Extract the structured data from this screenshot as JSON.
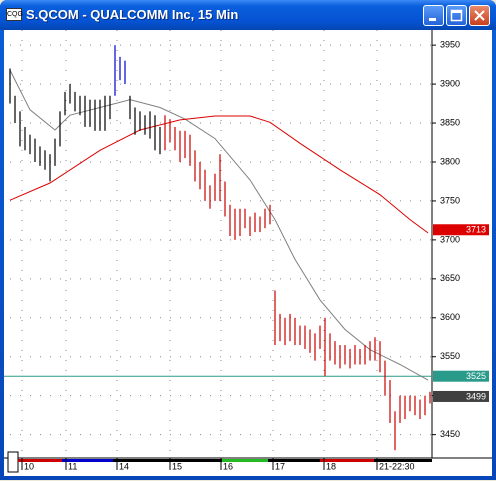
{
  "window": {
    "title": "S.QCOM - QUALCOMM Inc, 15 Min"
  },
  "chart_data": {
    "type": "ohlc",
    "xlim": [
      0,
      84
    ],
    "xticks": [
      {
        "value": 2.4,
        "label": "10"
      },
      {
        "value": 11.2,
        "label": "11"
      },
      {
        "value": 21.4,
        "label": "14"
      },
      {
        "value": 32,
        "label": "15"
      },
      {
        "value": 42.2,
        "label": "16"
      },
      {
        "value": 52.6,
        "label": "17"
      },
      {
        "value": 62.8,
        "label": "18"
      },
      {
        "value": 73.4,
        "label": "21-22:30"
      }
    ],
    "ylim": [
      3420,
      3972
    ],
    "yticks": [
      3450,
      3500,
      3550,
      3600,
      3650,
      3700,
      3750,
      3800,
      3850,
      3900,
      3950
    ],
    "grid": true,
    "high": [
      3920,
      3885,
      3865,
      3845,
      3835,
      3830,
      3820,
      3815,
      3810,
      3830,
      3865,
      3890,
      3900,
      3890,
      3885,
      3885,
      3880,
      3880,
      3880,
      3885,
      3885,
      3950,
      3935,
      3930,
      3885,
      3870,
      3865,
      3860,
      3865,
      3860,
      3845,
      3860,
      3855,
      3845,
      3840,
      3840,
      3835,
      3815,
      3800,
      3790,
      3770,
      3785,
      3810,
      3775,
      3745,
      3740,
      3740,
      3740,
      3730,
      3735,
      3730,
      3740,
      3745,
      3635,
      3605,
      3600,
      3605,
      3600,
      3590,
      3590,
      3585,
      3580,
      3590,
      3600,
      3580,
      3570,
      3565,
      3565,
      3560,
      3565,
      3560,
      3565,
      3570,
      3575,
      3570,
      3545,
      3520,
      3480,
      3500,
      3500,
      3500,
      3500,
      3495,
      3500,
      3505
    ],
    "low": [
      3875,
      3850,
      3820,
      3815,
      3810,
      3800,
      3795,
      3790,
      3775,
      3795,
      3820,
      3860,
      3875,
      3865,
      3860,
      3845,
      3845,
      3840,
      3840,
      3840,
      3855,
      3885,
      3905,
      3900,
      3855,
      3835,
      3840,
      3835,
      3830,
      3815,
      3810,
      3815,
      3825,
      3815,
      3800,
      3805,
      3795,
      3775,
      3765,
      3750,
      3740,
      3750,
      3750,
      3730,
      3705,
      3700,
      3705,
      3715,
      3705,
      3710,
      3710,
      3715,
      3720,
      3565,
      3570,
      3565,
      3570,
      3565,
      3565,
      3560,
      3555,
      3545,
      3560,
      3525,
      3545,
      3540,
      3535,
      3540,
      3535,
      3540,
      3540,
      3540,
      3545,
      3545,
      3530,
      3500,
      3465,
      3430,
      3465,
      3470,
      3480,
      3475,
      3470,
      3475,
      3490
    ],
    "colors": [
      "#000000",
      "#000000",
      "#000000",
      "#000000",
      "#000000",
      "#000000",
      "#000000",
      "#000000",
      "#000000",
      "#000000",
      "#000000",
      "#000000",
      "#000000",
      "#000000",
      "#000000",
      "#000000",
      "#000000",
      "#000000",
      "#000000",
      "#000000",
      "#000000",
      "#0000cc",
      "#0000cc",
      "#0000cc",
      "#000000",
      "#000000",
      "#000000",
      "#000000",
      "#000000",
      "#000000",
      "#000000",
      "#cc0000",
      "#cc0000",
      "#cc0000",
      "#cc0000",
      "#cc0000",
      "#cc0000",
      "#cc0000",
      "#cc0000",
      "#cc0000",
      "#cc0000",
      "#cc0000",
      "#cc0000",
      "#cc0000",
      "#cc0000",
      "#cc0000",
      "#cc0000",
      "#cc0000",
      "#cc0000",
      "#cc0000",
      "#cc0000",
      "#cc0000",
      "#cc0000",
      "#cc0000",
      "#cc0000",
      "#cc0000",
      "#cc0000",
      "#cc0000",
      "#cc0000",
      "#cc0000",
      "#cc0000",
      "#cc0000",
      "#cc0000",
      "#cc0000",
      "#cc0000",
      "#cc0000",
      "#cc0000",
      "#cc0000",
      "#cc0000",
      "#cc0000",
      "#cc0000",
      "#cc0000",
      "#cc0000",
      "#cc0000",
      "#cc0000",
      "#cc0000",
      "#cc0000",
      "#cc0000",
      "#cc0000",
      "#cc0000",
      "#cc0000",
      "#cc0000",
      "#cc0000",
      "#cc0000",
      "#cc0000"
    ],
    "lines": [
      {
        "color": "#808080",
        "x": [
          0,
          4,
          9,
          12,
          18,
          24,
          30,
          35,
          41,
          48,
          53,
          57,
          62,
          67,
          72,
          78,
          83.6
        ],
        "values": [
          3918,
          3867,
          3841,
          3860,
          3870,
          3880,
          3870,
          3855,
          3830,
          3777,
          3726,
          3675,
          3623,
          3585,
          3559,
          3540,
          3520
        ]
      },
      {
        "color": "#dd0000",
        "x": [
          0,
          8,
          18,
          26,
          34,
          41,
          48,
          52,
          58,
          66,
          74,
          80,
          83.6
        ],
        "values": [
          3751,
          3773,
          3815,
          3841,
          3854,
          3859,
          3859,
          3851,
          3824,
          3790,
          3758,
          3726,
          3709
        ]
      }
    ],
    "price_labels": [
      {
        "value": 3713,
        "color": "#dd0000",
        "line": false
      },
      {
        "value": 3525,
        "color": "#2a9a8a",
        "line": true
      },
      {
        "value": 3499,
        "color": "#404040",
        "line": false
      }
    ]
  }
}
